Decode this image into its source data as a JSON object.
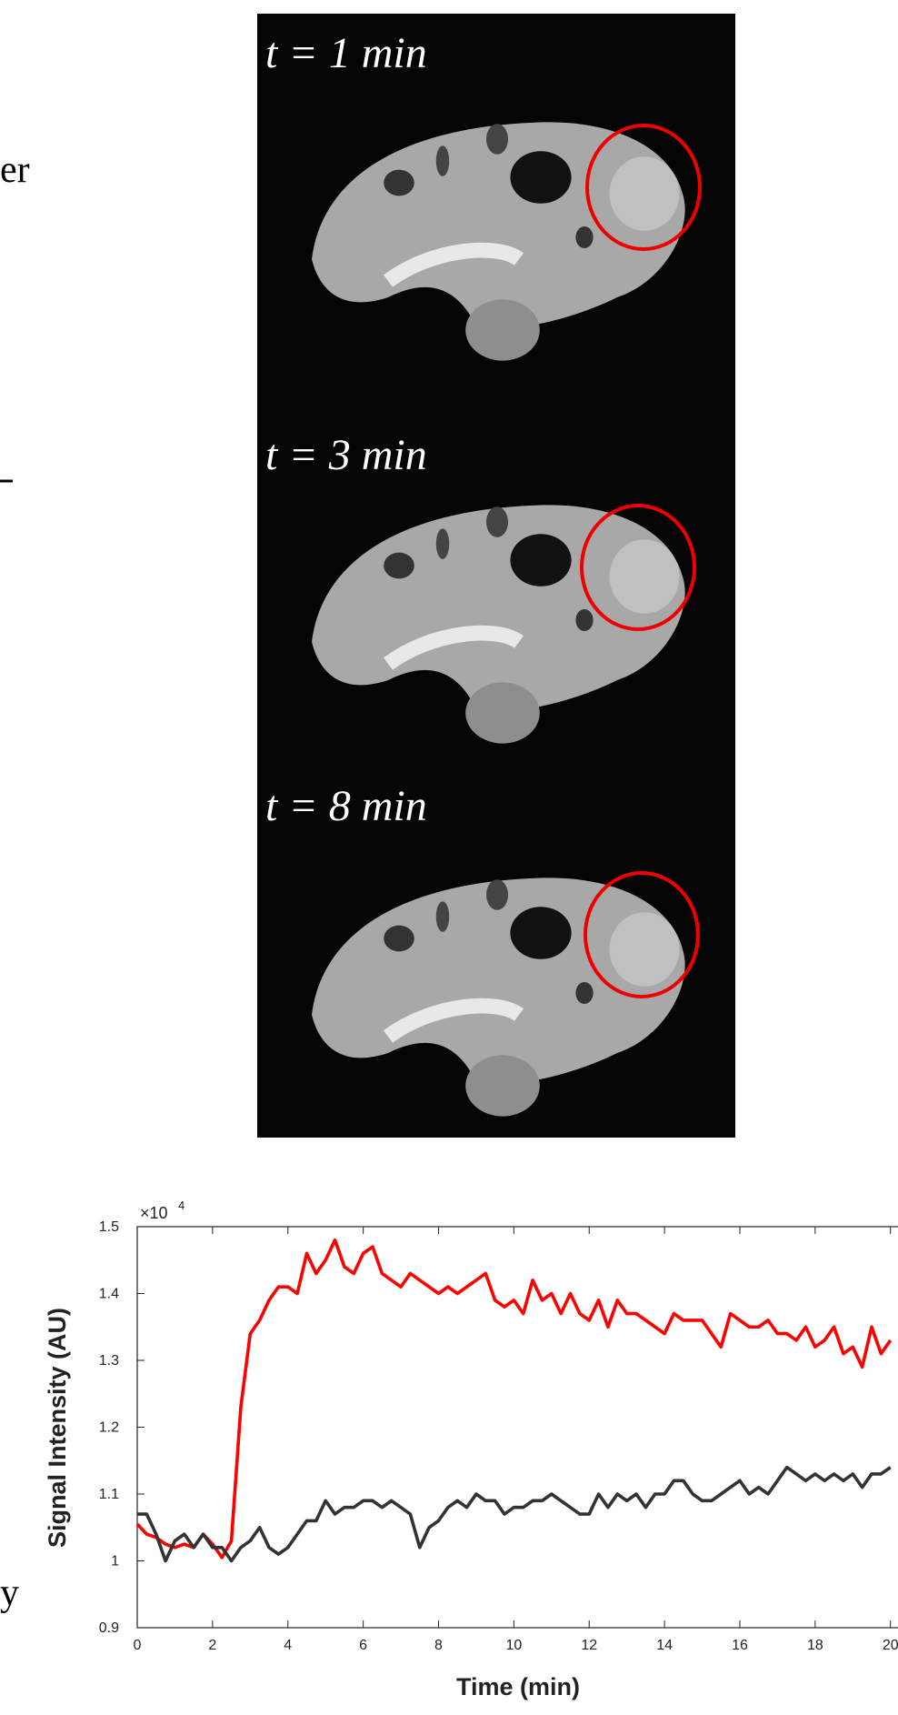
{
  "left_fragments": [
    "er",
    "y"
  ],
  "panels": [
    {
      "label": "t = 1 min"
    },
    {
      "label": "t = 3 min"
    },
    {
      "label": "t = 8 min"
    }
  ],
  "chart_data": {
    "type": "line",
    "x_label": "Time (min)",
    "y_label": "Signal Intensity (AU)",
    "y_multiplier": "×10",
    "y_multiplier_exponent": "4",
    "xlim": [
      0,
      20.2
    ],
    "xticks": [
      0,
      2,
      4,
      6,
      8,
      10,
      12,
      14,
      16,
      18,
      20
    ],
    "ylim": [
      0.9,
      1.5
    ],
    "yticks": [
      0.9,
      1,
      1.1,
      1.2,
      1.3,
      1.4,
      1.5
    ],
    "grid": false,
    "x": [
      0,
      0.25,
      0.5,
      0.75,
      1,
      1.25,
      1.5,
      1.75,
      2,
      2.25,
      2.5,
      2.75,
      3,
      3.25,
      3.5,
      3.75,
      4,
      4.25,
      4.5,
      4.75,
      5,
      5.25,
      5.5,
      5.75,
      6,
      6.25,
      6.5,
      6.75,
      7,
      7.25,
      7.5,
      7.75,
      8,
      8.25,
      8.5,
      8.75,
      9,
      9.25,
      9.5,
      9.75,
      10,
      10.25,
      10.5,
      10.75,
      11,
      11.25,
      11.5,
      11.75,
      12,
      12.25,
      12.5,
      12.75,
      13,
      13.25,
      13.5,
      13.75,
      14,
      14.25,
      14.5,
      14.75,
      15,
      15.25,
      15.5,
      15.75,
      16,
      16.25,
      16.5,
      16.75,
      17,
      17.25,
      17.5,
      17.75,
      18,
      18.25,
      18.5,
      18.75,
      19,
      19.25,
      19.5,
      19.75,
      20
    ],
    "series": [
      {
        "color": "#ff0000",
        "values": [
          1.055,
          1.04,
          1.035,
          1.025,
          1.02,
          1.025,
          1.02,
          1.04,
          1.025,
          1.005,
          1.03,
          1.23,
          1.34,
          1.36,
          1.39,
          1.41,
          1.41,
          1.4,
          1.46,
          1.43,
          1.45,
          1.48,
          1.44,
          1.43,
          1.46,
          1.47,
          1.43,
          1.42,
          1.41,
          1.43,
          1.42,
          1.41,
          1.4,
          1.41,
          1.4,
          1.41,
          1.42,
          1.43,
          1.39,
          1.38,
          1.39,
          1.37,
          1.42,
          1.39,
          1.4,
          1.37,
          1.4,
          1.37,
          1.36,
          1.39,
          1.35,
          1.39,
          1.37,
          1.37,
          1.36,
          1.35,
          1.34,
          1.37,
          1.36,
          1.36,
          1.36,
          1.34,
          1.32,
          1.37,
          1.36,
          1.35,
          1.35,
          1.36,
          1.34,
          1.34,
          1.33,
          1.35,
          1.32,
          1.33,
          1.35,
          1.31,
          1.32,
          1.29,
          1.35,
          1.31,
          1.33
        ]
      },
      {
        "color": "#333333",
        "values": [
          1.07,
          1.07,
          1.04,
          1.0,
          1.03,
          1.04,
          1.02,
          1.04,
          1.02,
          1.02,
          1.0,
          1.02,
          1.03,
          1.05,
          1.02,
          1.01,
          1.02,
          1.04,
          1.06,
          1.06,
          1.09,
          1.07,
          1.08,
          1.08,
          1.09,
          1.09,
          1.08,
          1.09,
          1.08,
          1.07,
          1.02,
          1.05,
          1.06,
          1.08,
          1.09,
          1.08,
          1.1,
          1.09,
          1.09,
          1.07,
          1.08,
          1.08,
          1.09,
          1.09,
          1.1,
          1.09,
          1.08,
          1.07,
          1.07,
          1.1,
          1.08,
          1.1,
          1.09,
          1.1,
          1.08,
          1.1,
          1.1,
          1.12,
          1.12,
          1.1,
          1.09,
          1.09,
          1.1,
          1.11,
          1.12,
          1.1,
          1.11,
          1.1,
          1.12,
          1.14,
          1.13,
          1.12,
          1.13,
          1.12,
          1.13,
          1.12,
          1.13,
          1.11,
          1.13,
          1.13,
          1.14
        ]
      }
    ]
  }
}
